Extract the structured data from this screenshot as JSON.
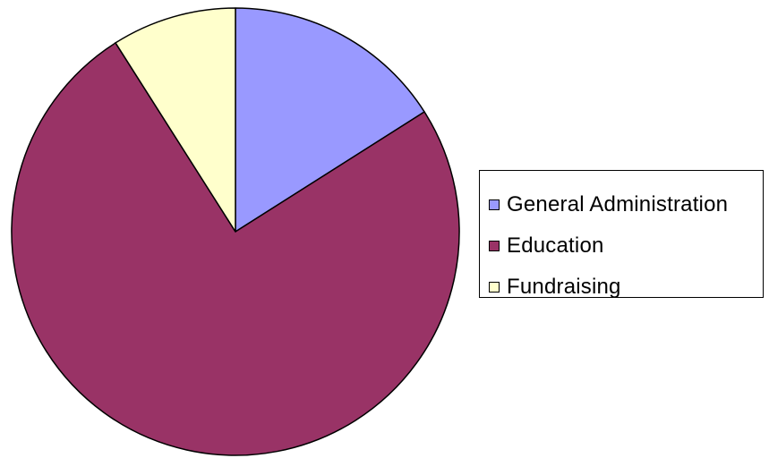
{
  "chart_data": {
    "type": "pie",
    "title": "",
    "slices": [
      {
        "label": "General Administration",
        "value": 16,
        "color": "#9999ff"
      },
      {
        "label": "Education",
        "value": 75,
        "color": "#993366"
      },
      {
        "label": "Fundraising",
        "value": 9,
        "color": "#ffffcc"
      }
    ],
    "start_angle_deg": 0,
    "direction": "clockwise",
    "legend_position": "right",
    "outline_color": "#000000"
  }
}
